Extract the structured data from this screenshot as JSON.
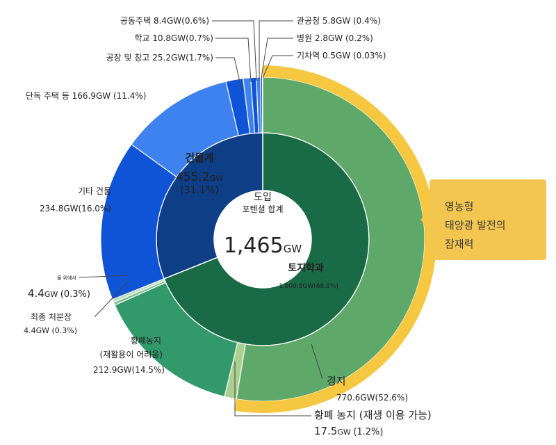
{
  "chart_data": {
    "type": "pie",
    "total": {
      "line1": "도입",
      "line2": "포텐셜 합계",
      "value": "1,465",
      "unit": "GW"
    },
    "inner_ring": [
      {
        "name": "토지학과",
        "value": 1009.8,
        "share": 68.9,
        "label": "토지학과",
        "detail": "1,009.8GW(68.9%)",
        "color": "#196b46"
      },
      {
        "name": "건물계",
        "value": 455.2,
        "share": 31.1,
        "label": "건물계",
        "detail_line1": "455.2",
        "detail_unit": "GW",
        "detail_line2": "(31.1%)",
        "color": "#0d3e86"
      }
    ],
    "outer_ring": [
      {
        "name": "경지",
        "value": 770.6,
        "share": 52.6,
        "label": "경지",
        "detail": "770.6GW(52.6%)",
        "color": "#5ea86a"
      },
      {
        "name": "황폐 농지 (재생 이용 가능)",
        "value": 17.5,
        "share": 1.2,
        "label": "황폐 농지 (재생 이용 가능)",
        "detail_value": "17.5",
        "detail_unit": "GW",
        "detail_pct": "(1.2%)",
        "color": "#a9d08e"
      },
      {
        "name": "황폐농지 (재활용이 어려움)",
        "value": 212.9,
        "share": 14.5,
        "label_line1": "황폐농지",
        "label_line2": "(재활용이 어려움)",
        "detail": "212.9GW(14.5%)",
        "color": "#32996b"
      },
      {
        "name": "최종 처분장",
        "value": 4.4,
        "share": 0.3,
        "label": "최종 처분장",
        "detail": "4.4GW (0.3%)",
        "color": "#7fbe8f"
      },
      {
        "name": "물 위에서",
        "value": 4.4,
        "share": 0.3,
        "label": "물 위에서",
        "detail_value": "4.4",
        "detail_unit": "GW",
        "detail_pct": "(0.3%)",
        "color": "#b9ddb9"
      },
      {
        "name": "기타 건물",
        "value": 234.8,
        "share": 16.0,
        "label": "기타 건물",
        "detail": "234.8GW(16.0%)",
        "color": "#0f53d6"
      },
      {
        "name": "단독 주택 등",
        "value": 166.9,
        "share": 11.4,
        "label": "단독 주택 등 166.9GW (11.4%)",
        "color": "#3e82ef"
      },
      {
        "name": "공장 및 창고",
        "value": 25.2,
        "share": 1.7,
        "label": "공장 및 창고 25.2GW(1.7%)",
        "color": "#0f53d6"
      },
      {
        "name": "학교",
        "value": 10.8,
        "share": 0.7,
        "label": "학교 10.8GW(0.7%)",
        "color": "#3e82ef"
      },
      {
        "name": "공동주택",
        "value": 8.4,
        "share": 0.6,
        "label": "공동주택 8.4GW(0.6%)",
        "color": "#0f53d6"
      },
      {
        "name": "관공청",
        "value": 5.8,
        "share": 0.4,
        "label": "관공청 5.8GW (0.4%)",
        "color": "#3e82ef"
      },
      {
        "name": "병원",
        "value": 2.8,
        "share": 0.2,
        "label": "병원 2.8GW (0.2%)",
        "color": "#0f53d6"
      },
      {
        "name": "기차역",
        "value": 0.5,
        "share": 0.03,
        "label": "기차역 0.5GW (0.03%)",
        "color": "#3e82ef"
      }
    ],
    "highlight_band": {
      "label_line1": "영농형",
      "label_line2": "태양광 발전의",
      "label_line3": "잠재력",
      "covers": "경지",
      "color": "#f6c842"
    }
  }
}
